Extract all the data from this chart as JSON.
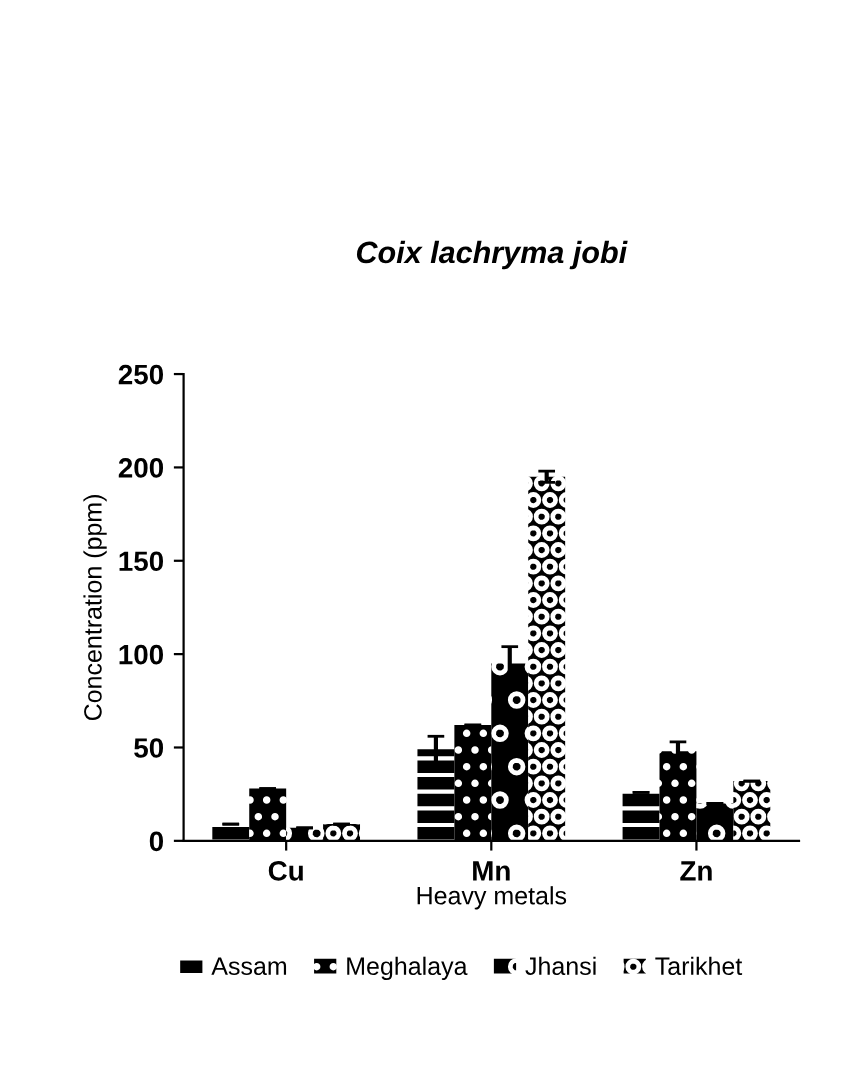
{
  "chart_data": {
    "type": "bar",
    "title": "Coix lachryma jobi",
    "xlabel": "Heavy metals",
    "ylabel": "Concentration (ppm)",
    "categories": [
      "Cu",
      "Mn",
      "Zn"
    ],
    "series": [
      {
        "name": "Assam",
        "color": "#000000",
        "values": [
          9,
          49,
          26
        ],
        "errors": [
          null,
          7,
          null
        ]
      },
      {
        "name": "Meghalaya",
        "color": "#000000",
        "values": [
          28,
          62,
          48
        ],
        "errors": [
          null,
          null,
          5
        ]
      },
      {
        "name": "Jhansi",
        "color": "#000000",
        "values": [
          7,
          95,
          20
        ],
        "errors": [
          null,
          9,
          null
        ]
      },
      {
        "name": "Tarikhet",
        "color": "#000000",
        "values": [
          9,
          195,
          32
        ],
        "errors": [
          null,
          3,
          null
        ]
      }
    ],
    "ylim": [
      0,
      250
    ],
    "yticks": [
      0,
      50,
      100,
      150,
      200,
      250
    ],
    "grid": false,
    "legend": "bottom"
  }
}
